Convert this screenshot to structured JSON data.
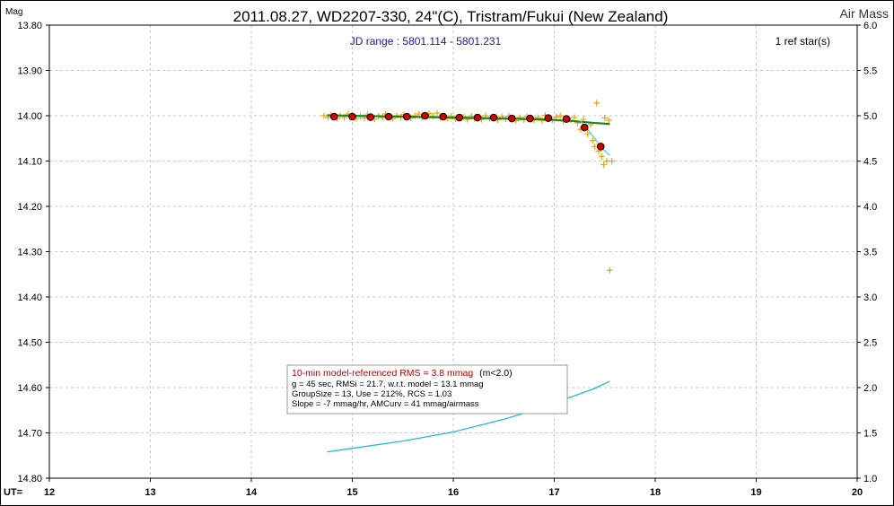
{
  "chart_data": {
    "type": "scatter",
    "title": "2011.08.27, WD2207-330, 24\"(C), Tristram/Fukui (New Zealand)",
    "left_axis_label": "Mag",
    "right_axis_label": "Air Mass",
    "x_axis_prefix": "UT=",
    "jd_range_label": "JD range : 5801.114 - 5801.231",
    "ref_stars_label": "1 ref star(s)",
    "xlim": [
      12,
      20
    ],
    "ylim": [
      13.8,
      14.8
    ],
    "y_inverted": true,
    "y2lim": [
      1.0,
      6.0
    ],
    "x_ticks": [
      "12",
      "13",
      "14",
      "15",
      "16",
      "17",
      "18",
      "19",
      "20"
    ],
    "y_ticks": [
      "13.80",
      "13.90",
      "14.00",
      "14.10",
      "14.20",
      "14.30",
      "14.40",
      "14.50",
      "14.60",
      "14.70",
      "14.80"
    ],
    "y2_ticks": [
      "6.0",
      "5.5",
      "5.0",
      "4.5",
      "4.0",
      "3.5",
      "3.0",
      "2.5",
      "2.0",
      "1.5",
      "1.0"
    ],
    "grid": true,
    "colors": {
      "individual_points": "#e8a317",
      "group_means_fill": "#d40000",
      "model_line": "#1a8a1a",
      "fit_line": "#3ccfe0",
      "airmass_line": "#22b8e6",
      "jd_label": "#1a1aa0",
      "rms_label": "#c00000"
    },
    "group_means": [
      {
        "x": 14.82,
        "y": 14.002
      },
      {
        "x": 15.0,
        "y": 14.002
      },
      {
        "x": 15.18,
        "y": 14.003
      },
      {
        "x": 15.36,
        "y": 14.002
      },
      {
        "x": 15.54,
        "y": 14.002
      },
      {
        "x": 15.72,
        "y": 14.0
      },
      {
        "x": 15.9,
        "y": 14.002
      },
      {
        "x": 16.06,
        "y": 14.004
      },
      {
        "x": 16.24,
        "y": 14.004
      },
      {
        "x": 16.4,
        "y": 14.004
      },
      {
        "x": 16.58,
        "y": 14.006
      },
      {
        "x": 16.76,
        "y": 14.006
      },
      {
        "x": 16.94,
        "y": 14.005
      },
      {
        "x": 17.12,
        "y": 14.007
      },
      {
        "x": 17.3,
        "y": 14.026
      },
      {
        "x": 17.46,
        "y": 14.068
      }
    ],
    "individual_points": [
      {
        "x": 14.72,
        "y": 14.0
      },
      {
        "x": 14.76,
        "y": 14.004
      },
      {
        "x": 14.79,
        "y": 13.998
      },
      {
        "x": 14.85,
        "y": 14.006
      },
      {
        "x": 14.88,
        "y": 14.0
      },
      {
        "x": 14.92,
        "y": 14.004
      },
      {
        "x": 14.96,
        "y": 13.996
      },
      {
        "x": 15.04,
        "y": 14.006
      },
      {
        "x": 15.08,
        "y": 14.001
      },
      {
        "x": 15.12,
        "y": 14.005
      },
      {
        "x": 15.15,
        "y": 13.998
      },
      {
        "x": 15.22,
        "y": 14.007
      },
      {
        "x": 15.26,
        "y": 14.001
      },
      {
        "x": 15.3,
        "y": 14.004
      },
      {
        "x": 15.33,
        "y": 13.996
      },
      {
        "x": 15.4,
        "y": 14.006
      },
      {
        "x": 15.44,
        "y": 14.0
      },
      {
        "x": 15.48,
        "y": 14.003
      },
      {
        "x": 15.51,
        "y": 13.997
      },
      {
        "x": 15.58,
        "y": 14.005
      },
      {
        "x": 15.62,
        "y": 14.0
      },
      {
        "x": 15.66,
        "y": 13.996
      },
      {
        "x": 15.69,
        "y": 14.004
      },
      {
        "x": 15.76,
        "y": 13.995
      },
      {
        "x": 15.8,
        "y": 14.001
      },
      {
        "x": 15.84,
        "y": 13.994
      },
      {
        "x": 15.87,
        "y": 14.004
      },
      {
        "x": 15.94,
        "y": 14.006
      },
      {
        "x": 15.98,
        "y": 14.001
      },
      {
        "x": 16.02,
        "y": 14.007
      },
      {
        "x": 16.1,
        "y": 14.002
      },
      {
        "x": 16.14,
        "y": 14.008
      },
      {
        "x": 16.18,
        "y": 14.001
      },
      {
        "x": 16.21,
        "y": 14.006
      },
      {
        "x": 16.28,
        "y": 14.008
      },
      {
        "x": 16.32,
        "y": 14.0
      },
      {
        "x": 16.36,
        "y": 14.006
      },
      {
        "x": 16.44,
        "y": 14.009
      },
      {
        "x": 16.48,
        "y": 14.002
      },
      {
        "x": 16.52,
        "y": 14.007
      },
      {
        "x": 16.55,
        "y": 14.001
      },
      {
        "x": 16.62,
        "y": 14.011
      },
      {
        "x": 16.66,
        "y": 14.004
      },
      {
        "x": 16.7,
        "y": 14.009
      },
      {
        "x": 16.73,
        "y": 14.002
      },
      {
        "x": 16.8,
        "y": 14.01
      },
      {
        "x": 16.84,
        "y": 14.004
      },
      {
        "x": 16.88,
        "y": 14.011
      },
      {
        "x": 16.91,
        "y": 13.999
      },
      {
        "x": 16.98,
        "y": 14.009
      },
      {
        "x": 17.02,
        "y": 14.003
      },
      {
        "x": 17.06,
        "y": 14.0
      },
      {
        "x": 17.09,
        "y": 14.012
      },
      {
        "x": 17.16,
        "y": 14.01
      },
      {
        "x": 17.2,
        "y": 14.004
      },
      {
        "x": 17.23,
        "y": 14.016
      },
      {
        "x": 17.26,
        "y": 14.03
      },
      {
        "x": 17.29,
        "y": 14.008
      },
      {
        "x": 17.33,
        "y": 14.04
      },
      {
        "x": 17.36,
        "y": 14.02
      },
      {
        "x": 17.38,
        "y": 14.055
      },
      {
        "x": 17.4,
        "y": 14.068
      },
      {
        "x": 17.42,
        "y": 13.972
      },
      {
        "x": 17.44,
        "y": 14.078
      },
      {
        "x": 17.47,
        "y": 14.09
      },
      {
        "x": 17.49,
        "y": 14.108
      },
      {
        "x": 17.5,
        "y": 14.005
      },
      {
        "x": 17.52,
        "y": 14.1
      },
      {
        "x": 17.54,
        "y": 14.01
      },
      {
        "x": 17.55,
        "y": 14.341
      },
      {
        "x": 17.57,
        "y": 14.1
      }
    ],
    "model_line": [
      {
        "x": 14.75,
        "y": 13.999
      },
      {
        "x": 15.5,
        "y": 14.002
      },
      {
        "x": 16.2,
        "y": 14.005
      },
      {
        "x": 16.9,
        "y": 14.008
      },
      {
        "x": 17.2,
        "y": 14.012
      },
      {
        "x": 17.4,
        "y": 14.016
      },
      {
        "x": 17.55,
        "y": 14.018
      }
    ],
    "fit_line": [
      {
        "x": 17.26,
        "y": 14.012
      },
      {
        "x": 17.33,
        "y": 14.03
      },
      {
        "x": 17.4,
        "y": 14.05
      },
      {
        "x": 17.47,
        "y": 14.072
      },
      {
        "x": 17.55,
        "y": 14.087
      }
    ],
    "airmass_curve": [
      {
        "x": 14.75,
        "y2": 1.29
      },
      {
        "x": 15.0,
        "y2": 1.33
      },
      {
        "x": 15.5,
        "y2": 1.41
      },
      {
        "x": 16.0,
        "y2": 1.51
      },
      {
        "x": 16.5,
        "y2": 1.65
      },
      {
        "x": 16.8,
        "y2": 1.75
      },
      {
        "x": 17.0,
        "y2": 1.83
      },
      {
        "x": 17.2,
        "y2": 1.91
      },
      {
        "x": 17.4,
        "y2": 1.99
      },
      {
        "x": 17.55,
        "y2": 2.07
      }
    ],
    "info_box": {
      "rms_text": "10-min model-referenced RMS = 3.8 mmag",
      "rms_note": "(m<2.0)",
      "line2": "g = 45 sec, RMSi = 21.7, w.r.t. model = 13.1 mmag",
      "line3": "GroupSize = 13, Use = 212%, RCS = 1.03",
      "line4": "Slope = -7 mmag/hr, AMCurv = 41 mmag/airmass"
    }
  }
}
